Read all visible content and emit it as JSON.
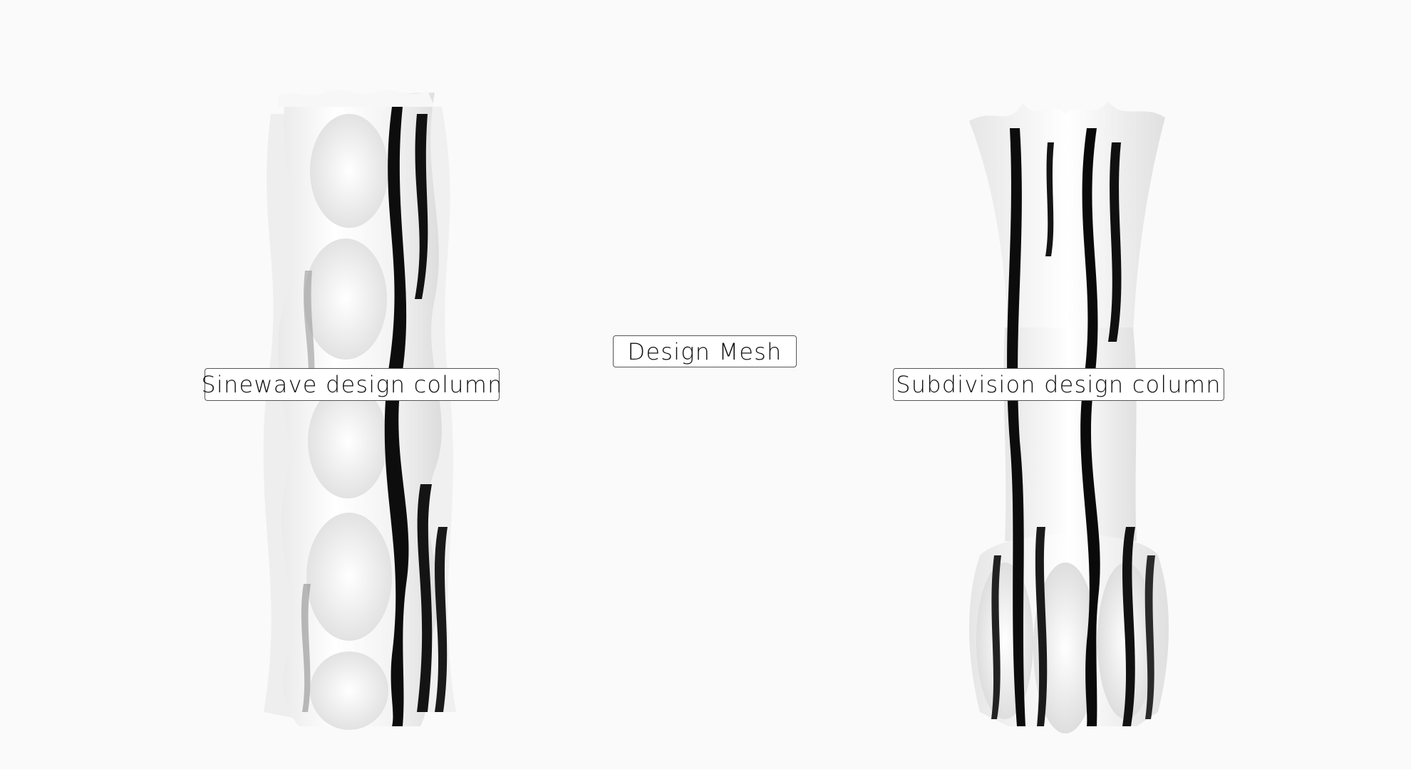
{
  "labels": {
    "design_mesh": "Design Mesh",
    "sinewave_column": "Sinewave design column",
    "subdivision_column": "Subdivision design column"
  },
  "colors": {
    "background": "#fafafa",
    "mesh_light": "#ffffff",
    "mesh_shadow": "#0a0a0a",
    "label_border": "#555555"
  }
}
